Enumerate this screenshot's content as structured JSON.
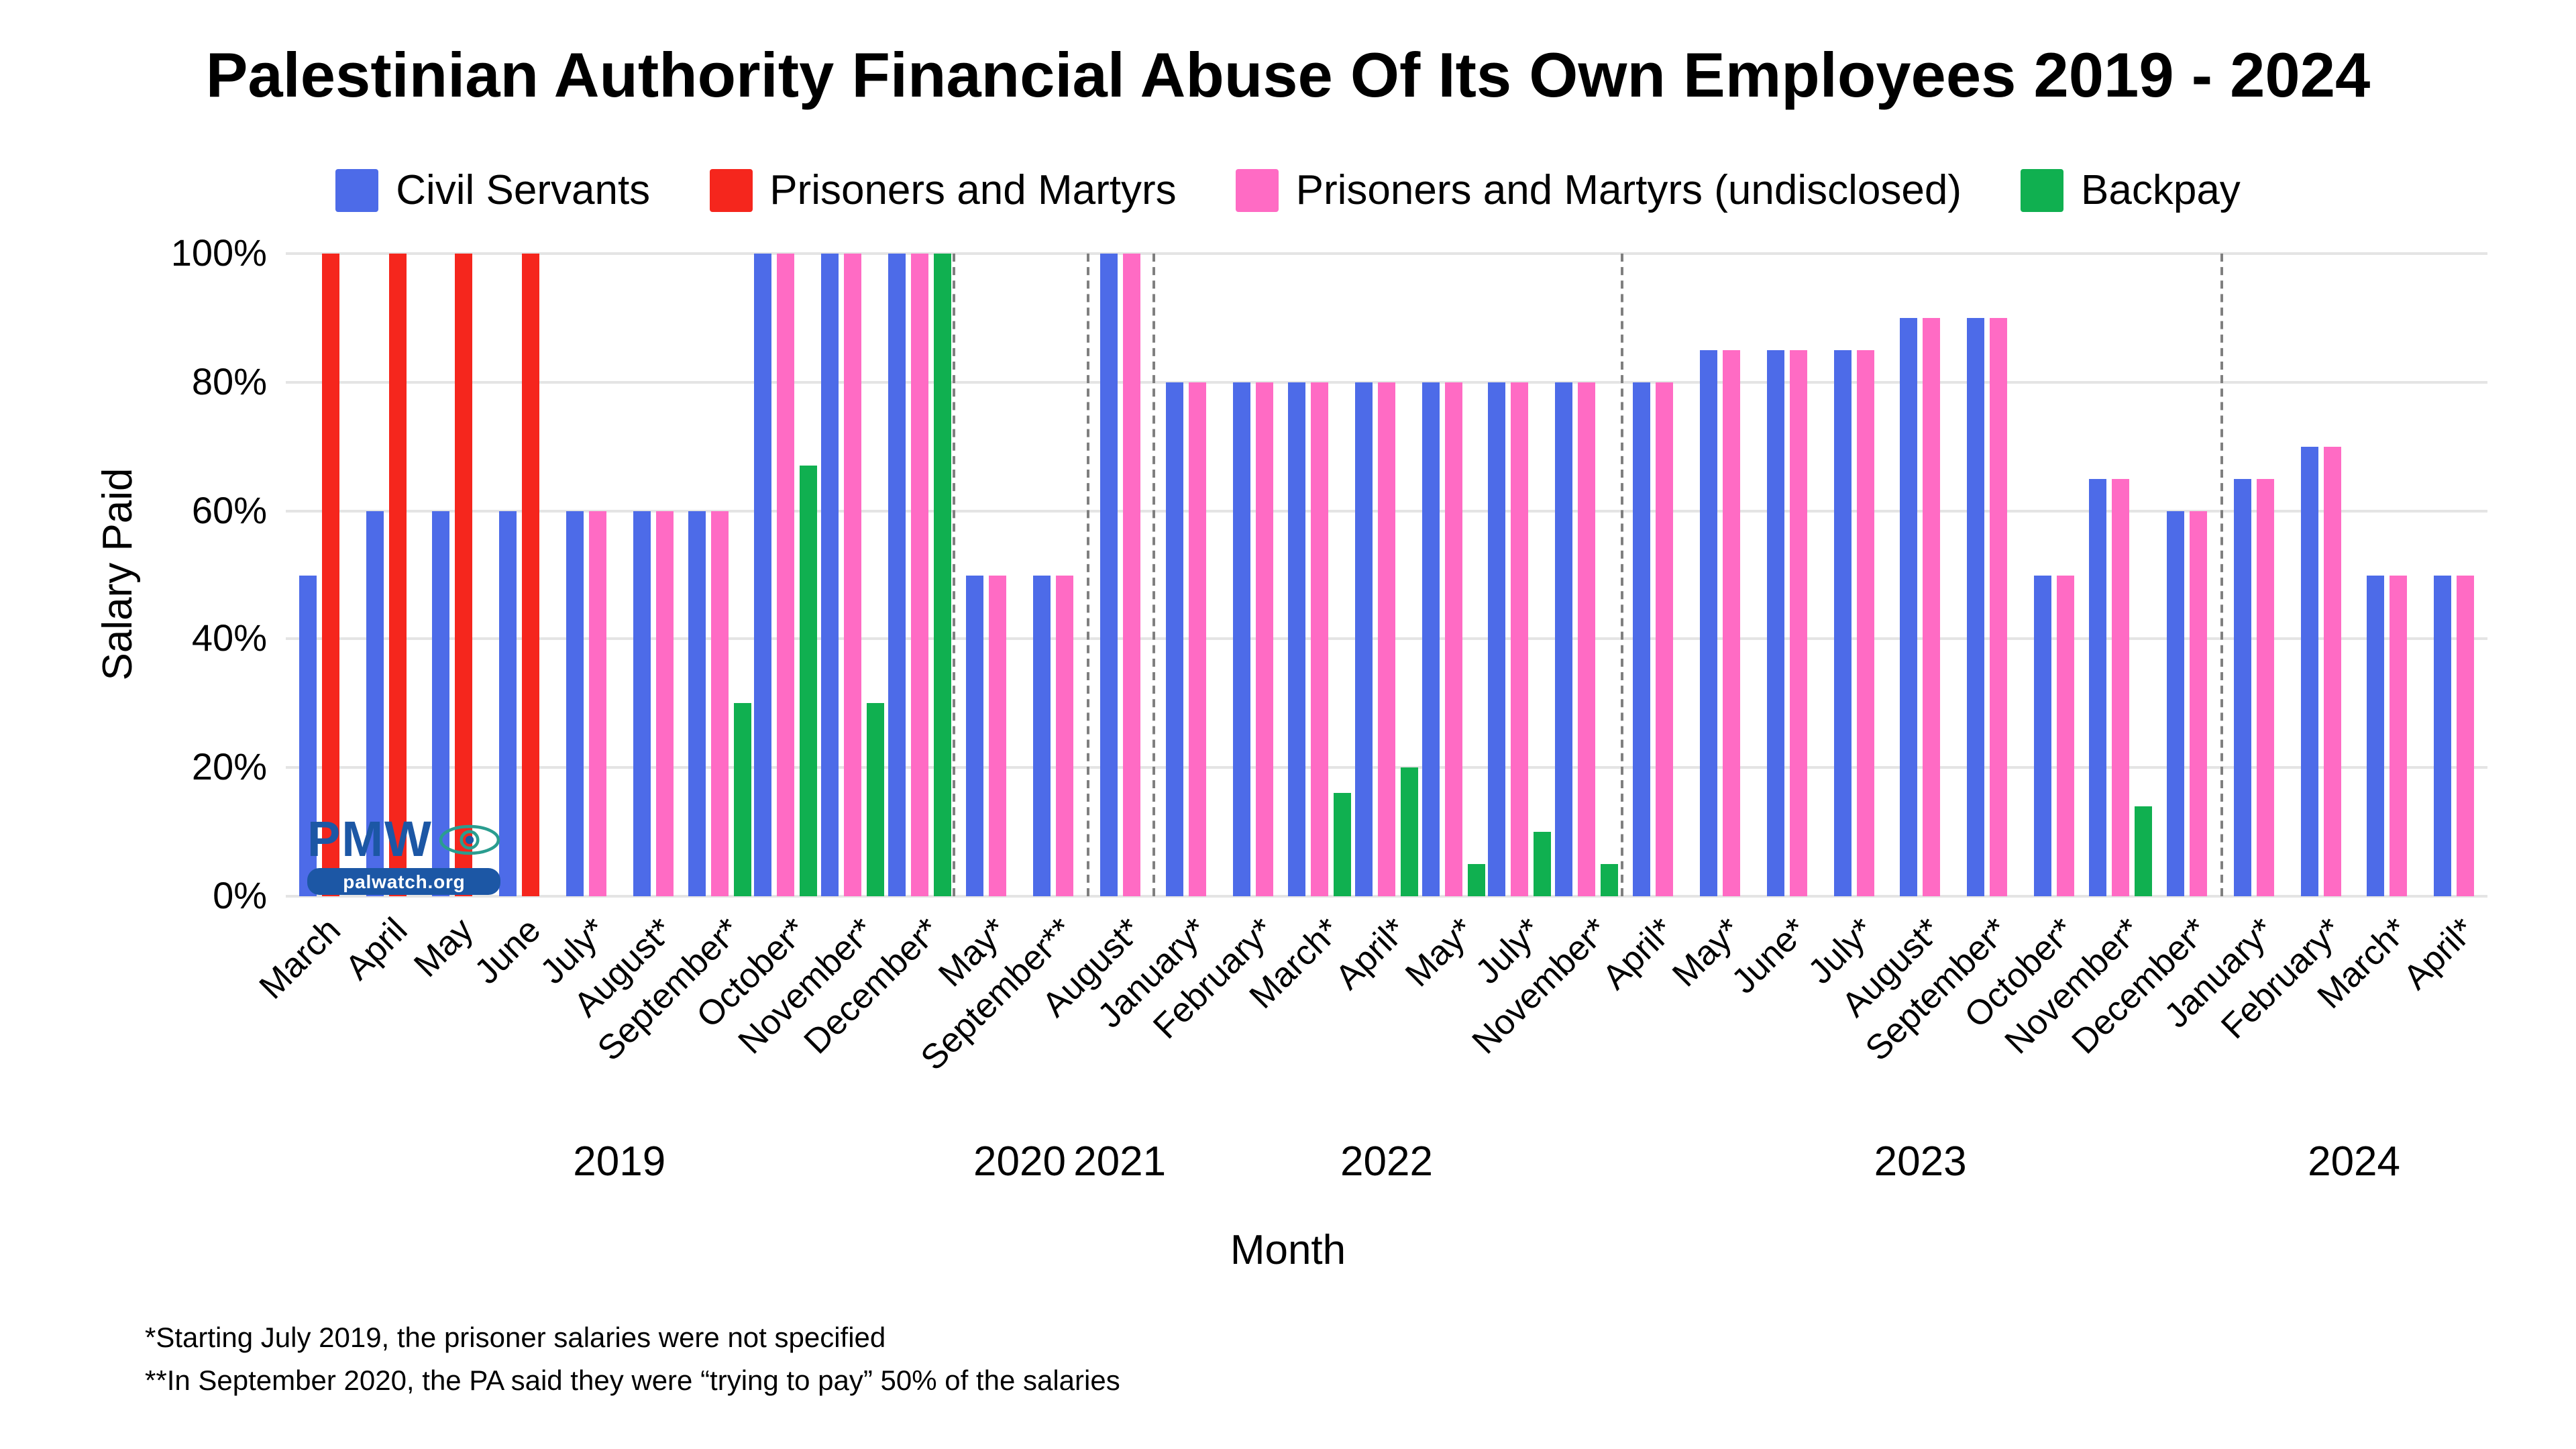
{
  "chart_data": {
    "type": "bar",
    "title": "Palestinian Authority Financial Abuse Of Its Own Employees 2019 - 2024",
    "xlabel": "Month",
    "ylabel": "Salary Paid",
    "ylim": [
      0,
      100
    ],
    "yticks": [
      0,
      20,
      40,
      60,
      80,
      100
    ],
    "ytick_suffix": "%",
    "grid": "horizontal",
    "legend_position": "top-center",
    "legend": [
      {
        "key": "civil",
        "name": "Civil Servants",
        "color": "#4D6BE8"
      },
      {
        "key": "prisoners",
        "name": "Prisoners and Martyrs",
        "color": "#F5261D"
      },
      {
        "key": "undisclosed",
        "name": "Prisoners and Martyrs (undisclosed)",
        "color": "#FF6BC4"
      },
      {
        "key": "backpay",
        "name": "Backpay",
        "color": "#10B050"
      }
    ],
    "groups": [
      {
        "month": "March",
        "values": {
          "civil": 50,
          "prisoners": 100
        }
      },
      {
        "month": "April",
        "values": {
          "civil": 60,
          "prisoners": 100
        }
      },
      {
        "month": "May",
        "values": {
          "civil": 60,
          "prisoners": 100
        }
      },
      {
        "month": "June",
        "values": {
          "civil": 60,
          "prisoners": 100
        }
      },
      {
        "month": "July*",
        "values": {
          "civil": 60,
          "undisclosed": 60
        }
      },
      {
        "month": "August*",
        "values": {
          "civil": 60,
          "undisclosed": 60
        }
      },
      {
        "month": "September*",
        "values": {
          "civil": 60,
          "undisclosed": 60,
          "backpay": 30
        }
      },
      {
        "month": "October*",
        "values": {
          "civil": 100,
          "undisclosed": 100,
          "backpay": 67
        }
      },
      {
        "month": "November*",
        "values": {
          "civil": 100,
          "undisclosed": 100,
          "backpay": 30
        }
      },
      {
        "month": "December*",
        "values": {
          "civil": 100,
          "undisclosed": 100,
          "backpay": 100
        }
      },
      {
        "month": "May*",
        "values": {
          "civil": 50,
          "undisclosed": 50
        }
      },
      {
        "month": "September**",
        "values": {
          "civil": 50,
          "undisclosed": 50
        }
      },
      {
        "month": "August*",
        "values": {
          "civil": 100,
          "undisclosed": 100
        }
      },
      {
        "month": "January*",
        "values": {
          "civil": 80,
          "undisclosed": 80
        }
      },
      {
        "month": "February*",
        "values": {
          "civil": 80,
          "undisclosed": 80
        }
      },
      {
        "month": "March*",
        "values": {
          "civil": 80,
          "undisclosed": 80,
          "backpay": 16
        }
      },
      {
        "month": "April*",
        "values": {
          "civil": 80,
          "undisclosed": 80,
          "backpay": 20
        }
      },
      {
        "month": "May*",
        "values": {
          "civil": 80,
          "undisclosed": 80,
          "backpay": 5
        }
      },
      {
        "month": "July*",
        "values": {
          "civil": 80,
          "undisclosed": 80,
          "backpay": 10
        }
      },
      {
        "month": "November*",
        "values": {
          "civil": 80,
          "undisclosed": 80,
          "backpay": 5
        }
      },
      {
        "month": "April*",
        "values": {
          "civil": 80,
          "undisclosed": 80
        }
      },
      {
        "month": "May*",
        "values": {
          "civil": 85,
          "undisclosed": 85
        }
      },
      {
        "month": "June*",
        "values": {
          "civil": 85,
          "undisclosed": 85
        }
      },
      {
        "month": "July*",
        "values": {
          "civil": 85,
          "undisclosed": 85
        }
      },
      {
        "month": "August*",
        "values": {
          "civil": 90,
          "undisclosed": 90
        }
      },
      {
        "month": "September*",
        "values": {
          "civil": 90,
          "undisclosed": 90
        }
      },
      {
        "month": "October*",
        "values": {
          "civil": 50,
          "undisclosed": 50
        }
      },
      {
        "month": "November*",
        "values": {
          "civil": 65,
          "undisclosed": 65,
          "backpay": 14
        }
      },
      {
        "month": "December*",
        "values": {
          "civil": 60,
          "undisclosed": 60
        }
      },
      {
        "month": "January*",
        "values": {
          "civil": 65,
          "undisclosed": 65
        }
      },
      {
        "month": "February*",
        "values": {
          "civil": 70,
          "undisclosed": 70
        }
      },
      {
        "month": "March*",
        "values": {
          "civil": 50,
          "undisclosed": 50
        }
      },
      {
        "month": "April*",
        "values": {
          "civil": 50,
          "undisclosed": 50
        }
      }
    ],
    "year_spans": [
      {
        "label": "2019",
        "start": 0,
        "end": 9
      },
      {
        "label": "2020",
        "start": 10,
        "end": 11
      },
      {
        "label": "2021",
        "start": 12,
        "end": 12
      },
      {
        "label": "2022",
        "start": 13,
        "end": 19
      },
      {
        "label": "2023",
        "start": 20,
        "end": 28
      },
      {
        "label": "2024",
        "start": 29,
        "end": 32
      }
    ],
    "separators_after": [
      9,
      11,
      12,
      19,
      28
    ]
  },
  "footnotes": [
    "*Starting July 2019, the prisoner salaries were not specified",
    "**In September 2020, the PA said they were “trying to pay” 50% of the salaries"
  ],
  "logo": {
    "brand": "PMW",
    "site": "palwatch.org",
    "brand_color": "#1c57a5",
    "eye_color": "#2a9d8f"
  }
}
